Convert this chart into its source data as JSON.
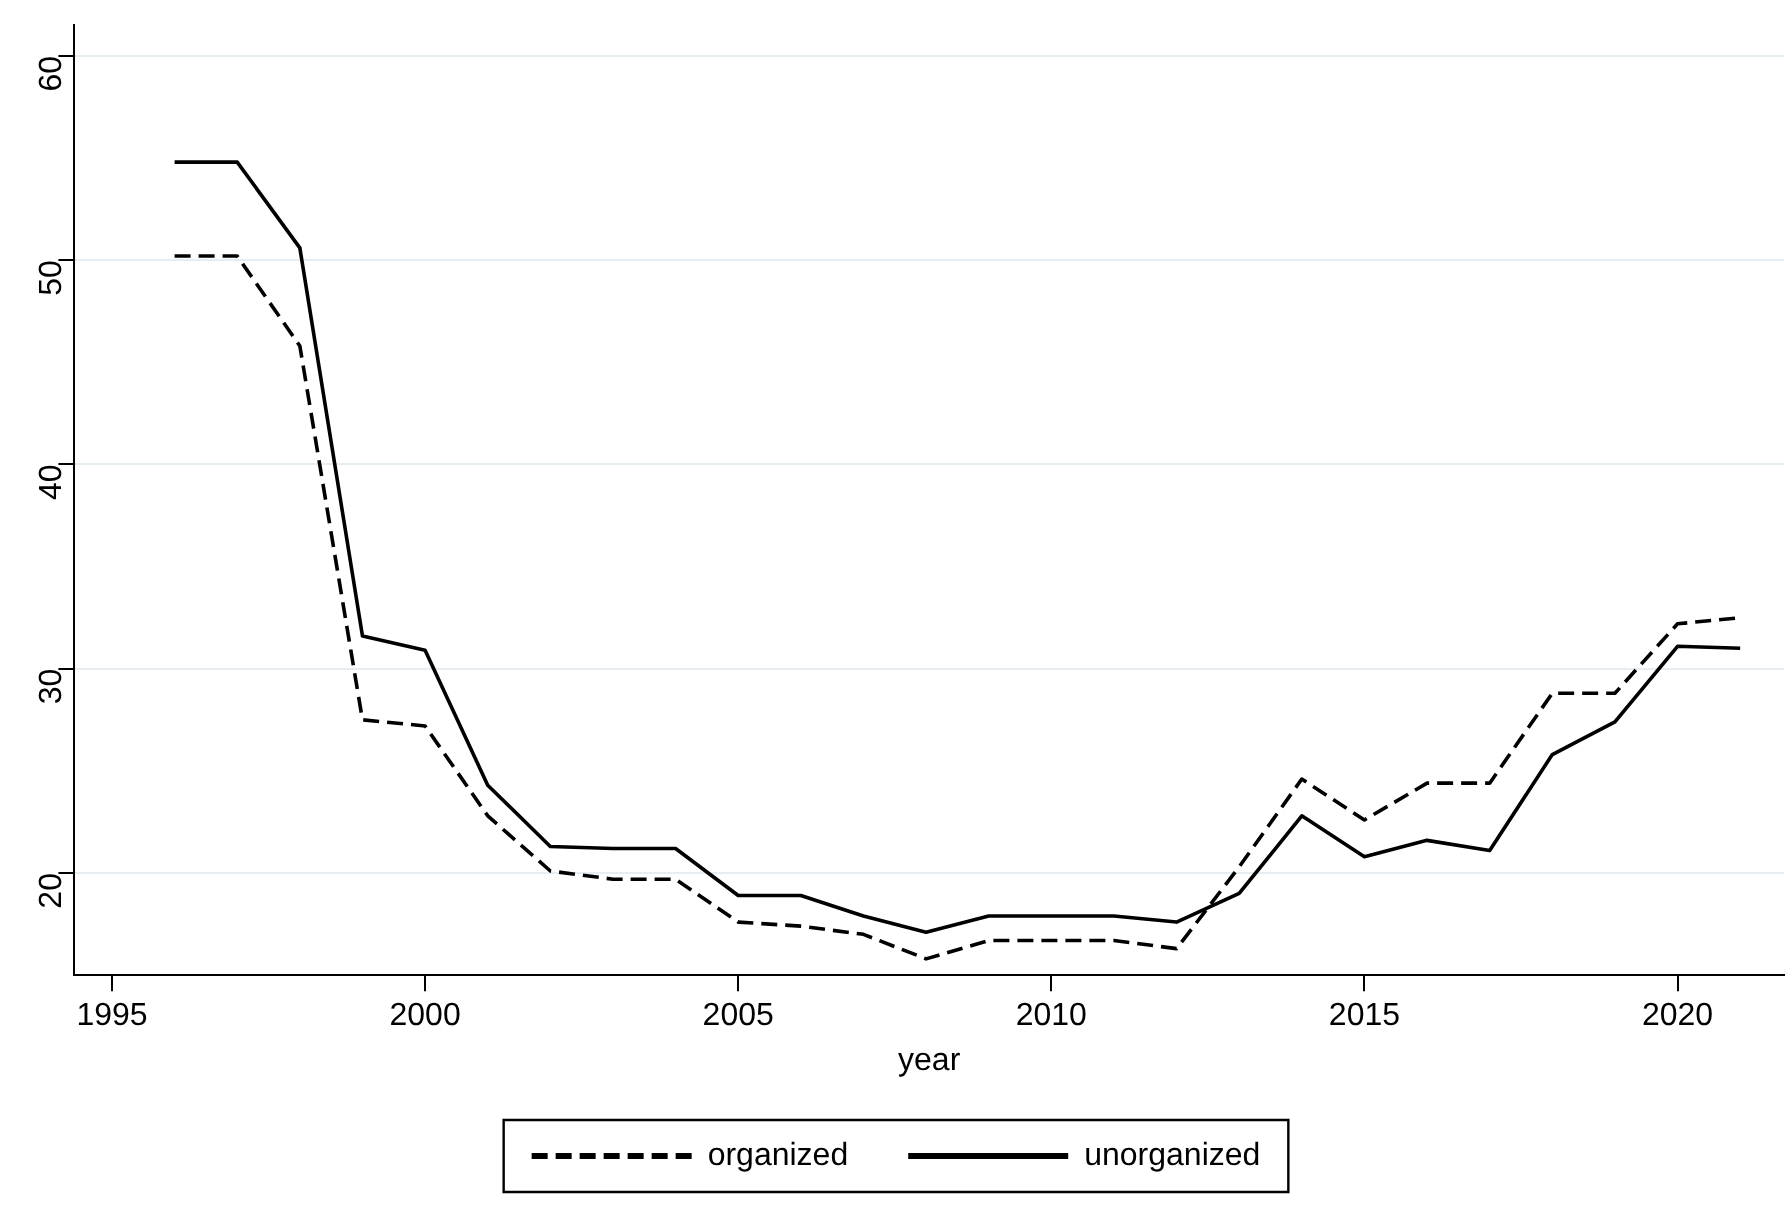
{
  "chart_data": {
    "type": "line",
    "xlabel": "year",
    "x": [
      1996,
      1997,
      1998,
      1999,
      2000,
      2001,
      2002,
      2003,
      2004,
      2005,
      2006,
      2007,
      2008,
      2009,
      2010,
      2011,
      2012,
      2013,
      2014,
      2015,
      2016,
      2017,
      2018,
      2019,
      2020,
      2021
    ],
    "series": [
      {
        "name": "organized",
        "color": "#000000",
        "line_style": "dashed",
        "values": [
          50.2,
          50.2,
          45.8,
          27.5,
          27.2,
          22.8,
          20.1,
          19.7,
          19.7,
          17.6,
          17.4,
          17.0,
          15.8,
          16.7,
          16.7,
          16.7,
          16.3,
          20.3,
          24.6,
          22.6,
          24.4,
          24.4,
          28.8,
          28.8,
          32.2,
          32.5
        ]
      },
      {
        "name": "unorganized",
        "color": "#000000",
        "line_style": "solid",
        "values": [
          54.8,
          54.8,
          50.6,
          31.6,
          30.9,
          24.3,
          21.3,
          21.2,
          21.2,
          18.9,
          18.9,
          17.9,
          17.1,
          17.9,
          17.9,
          17.9,
          17.6,
          19.0,
          22.8,
          20.8,
          21.6,
          21.1,
          25.8,
          27.4,
          31.1,
          31.0
        ]
      }
    ],
    "xlim": [
      1994.4,
      2021.7
    ],
    "xticks": [
      1995,
      2000,
      2005,
      2010,
      2015,
      2020
    ],
    "ylim": [
      15,
      61.5
    ],
    "yticks": [
      20,
      30,
      40,
      50,
      60
    ],
    "grid": "y",
    "legend": "bottom",
    "marker": "none"
  }
}
